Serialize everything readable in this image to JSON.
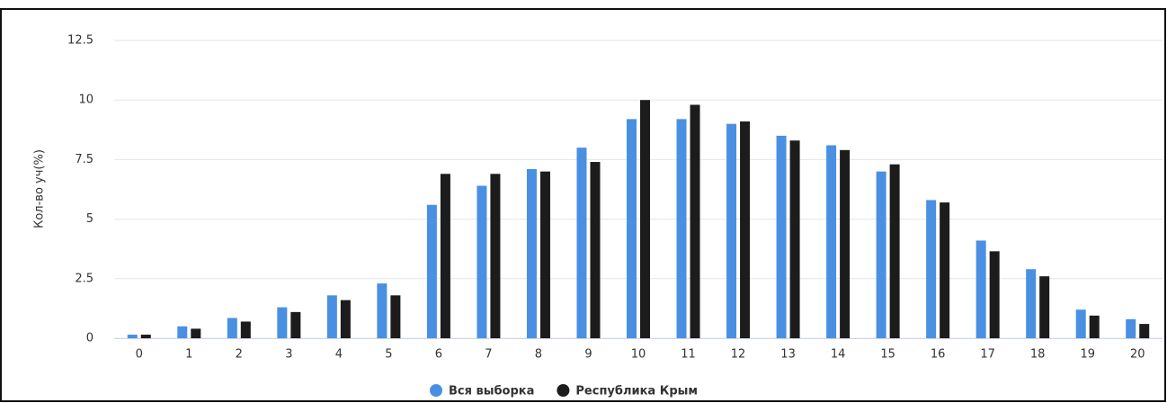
{
  "chart_data": {
    "type": "bar",
    "y_label": "Кол-во уч(%)",
    "categories": [
      "0",
      "1",
      "2",
      "3",
      "4",
      "5",
      "6",
      "7",
      "8",
      "9",
      "10",
      "11",
      "12",
      "13",
      "14",
      "15",
      "16",
      "17",
      "18",
      "19",
      "20"
    ],
    "series": [
      {
        "name": "Вся выборка",
        "color": "#4a90e2",
        "values": [
          0.15,
          0.5,
          0.85,
          1.3,
          1.8,
          2.3,
          5.6,
          6.4,
          7.1,
          8.0,
          9.2,
          9.2,
          9.0,
          8.5,
          8.1,
          7.0,
          5.8,
          4.1,
          2.9,
          1.2,
          0.8
        ]
      },
      {
        "name": "Республика Крым",
        "color": "#1c1c1c",
        "values": [
          0.15,
          0.4,
          0.7,
          1.1,
          1.6,
          1.8,
          6.9,
          6.9,
          7.0,
          7.4,
          10.0,
          9.8,
          9.1,
          8.3,
          7.9,
          7.3,
          5.7,
          3.65,
          2.6,
          0.95,
          0.6
        ]
      }
    ],
    "ylim": [
      0,
      12.5
    ],
    "yticks": [
      0,
      2.5,
      5,
      7.5,
      10,
      12.5
    ],
    "grid": true,
    "legend": "bottom"
  }
}
